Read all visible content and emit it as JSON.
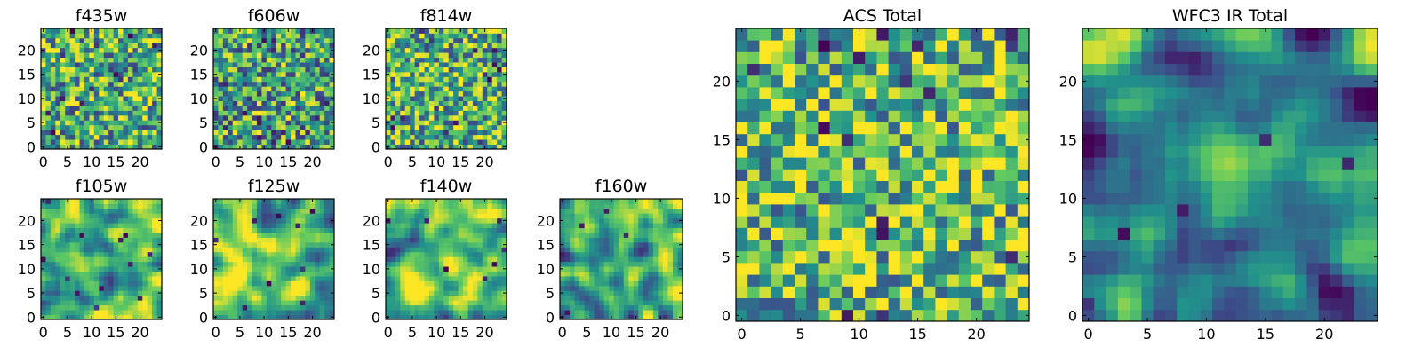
{
  "figure": {
    "background": "#ffffff",
    "colormap": "viridis",
    "colormap_stops": [
      "#440154",
      "#3b528b",
      "#21918c",
      "#5ec962",
      "#fde725"
    ]
  },
  "chart_data": [
    {
      "id": "f435w",
      "type": "heatmap",
      "title": "f435w",
      "grid_size": 25,
      "texture": "noise",
      "seed": 11,
      "bias": 0.62,
      "xticks": [
        0,
        5,
        10,
        15,
        20
      ],
      "yticks": [
        0,
        5,
        10,
        15,
        20
      ],
      "xlim": [
        -0.5,
        24.5
      ],
      "ylim": [
        -0.5,
        24.5
      ]
    },
    {
      "id": "f606w",
      "type": "heatmap",
      "title": "f606w",
      "grid_size": 25,
      "texture": "noise",
      "seed": 23,
      "bias": 0.58,
      "xticks": [
        0,
        5,
        10,
        15,
        20
      ],
      "yticks": [
        0,
        5,
        10,
        15,
        20
      ],
      "xlim": [
        -0.5,
        24.5
      ],
      "ylim": [
        -0.5,
        24.5
      ]
    },
    {
      "id": "f814w",
      "type": "heatmap",
      "title": "f814w",
      "grid_size": 25,
      "texture": "noise",
      "seed": 37,
      "bias": 0.64,
      "xticks": [
        0,
        5,
        10,
        15,
        20
      ],
      "yticks": [
        0,
        5,
        10,
        15,
        20
      ],
      "xlim": [
        -0.5,
        24.5
      ],
      "ylim": [
        -0.5,
        24.5
      ]
    },
    {
      "id": "f105w",
      "type": "heatmap",
      "title": "f105w",
      "grid_size": 25,
      "texture": "smooth",
      "seed": 41,
      "bias": 0.72,
      "xticks": [
        0,
        5,
        10,
        15,
        20
      ],
      "yticks": [
        0,
        5,
        10,
        15,
        20
      ],
      "xlim": [
        -0.5,
        24.5
      ],
      "ylim": [
        -0.5,
        24.5
      ]
    },
    {
      "id": "f125w",
      "type": "heatmap",
      "title": "f125w",
      "grid_size": 25,
      "texture": "smooth",
      "seed": 53,
      "bias": 0.7,
      "xticks": [
        0,
        5,
        10,
        15,
        20
      ],
      "yticks": [
        0,
        5,
        10,
        15,
        20
      ],
      "xlim": [
        -0.5,
        24.5
      ],
      "ylim": [
        -0.5,
        24.5
      ]
    },
    {
      "id": "f140w",
      "type": "heatmap",
      "title": "f140w",
      "grid_size": 25,
      "texture": "smooth",
      "seed": 67,
      "bias": 0.66,
      "xticks": [
        0,
        5,
        10,
        15,
        20
      ],
      "yticks": [
        0,
        5,
        10,
        15,
        20
      ],
      "xlim": [
        -0.5,
        24.5
      ],
      "ylim": [
        -0.5,
        24.5
      ]
    },
    {
      "id": "f160w",
      "type": "heatmap",
      "title": "f160w",
      "grid_size": 25,
      "texture": "smooth",
      "seed": 79,
      "bias": 0.6,
      "xticks": [
        0,
        5,
        10,
        15,
        20
      ],
      "yticks": [
        0,
        5,
        10,
        15,
        20
      ],
      "xlim": [
        -0.5,
        24.5
      ],
      "ylim": [
        -0.5,
        24.5
      ]
    },
    {
      "id": "acs-total",
      "type": "heatmap",
      "title": "ACS Total",
      "grid_size": 25,
      "texture": "noise",
      "seed": 97,
      "bias": 0.68,
      "xticks": [
        0,
        5,
        10,
        15,
        20
      ],
      "yticks": [
        0,
        5,
        10,
        15,
        20
      ],
      "xlim": [
        -0.5,
        24.5
      ],
      "ylim": [
        -0.5,
        24.5
      ]
    },
    {
      "id": "wfc3-ir-total",
      "type": "heatmap",
      "title": "WFC3 IR Total",
      "grid_size": 25,
      "texture": "smooth-dark",
      "seed": 113,
      "bias": 0.45,
      "hotspots": [
        {
          "x": 0.5,
          "y": 22.5,
          "value": 0.98
        },
        {
          "x": 12,
          "y": 13,
          "value": 0.85
        }
      ],
      "xticks": [
        0,
        5,
        10,
        15,
        20
      ],
      "yticks": [
        0,
        5,
        10,
        15,
        20
      ],
      "xlim": [
        -0.5,
        24.5
      ],
      "ylim": [
        -0.5,
        24.5
      ]
    }
  ]
}
